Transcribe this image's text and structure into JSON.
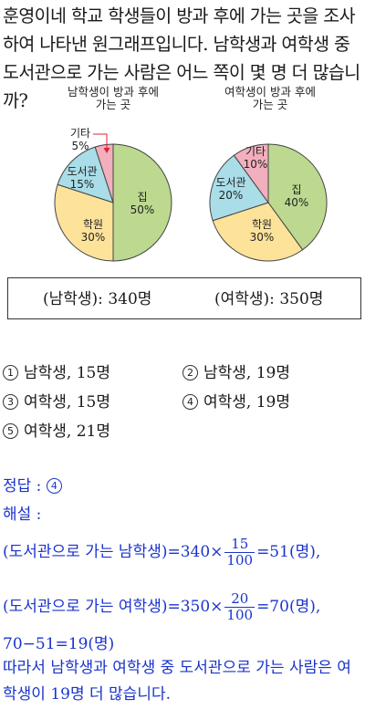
{
  "question": {
    "text": "훈영이네 학교 학생들이 방과 후에 가는 곳을 조사하여 나타낸 원그래프입니다. 남학생과 여학생 중 도서관으로 가는 사람은 어느 쪽이 몇 명 더 많습니까?"
  },
  "chart_data": [
    {
      "type": "pie",
      "title_line1": "남학생이 방과 후에",
      "title_line2": "가는 곳",
      "slices": [
        {
          "label": "집",
          "value": 50,
          "text": "50%",
          "color": "#bcd98f"
        },
        {
          "label": "학원",
          "value": 30,
          "text": "30%",
          "color": "#fde29a"
        },
        {
          "label": "도서관",
          "value": 15,
          "text": "15%",
          "color": "#a9dde8"
        },
        {
          "label": "기타",
          "value": 5,
          "text": "5%",
          "color": "#f2afbd"
        }
      ]
    },
    {
      "type": "pie",
      "title_line1": "여학생이 방과 후에",
      "title_line2": "가는 곳",
      "slices": [
        {
          "label": "집",
          "value": 40,
          "text": "40%",
          "color": "#bcd98f"
        },
        {
          "label": "학원",
          "value": 30,
          "text": "30%",
          "color": "#fde29a"
        },
        {
          "label": "도서관",
          "value": 20,
          "text": "20%",
          "color": "#a9dde8"
        },
        {
          "label": "기타",
          "value": 10,
          "text": "10%",
          "color": "#f2afbd"
        }
      ]
    }
  ],
  "info_box": {
    "male": "(남학생): 340명",
    "female": "(여학생): 350명"
  },
  "choices": [
    {
      "num": "1",
      "text": "남학생, 15명"
    },
    {
      "num": "2",
      "text": "남학생, 19명"
    },
    {
      "num": "3",
      "text": "여학생, 15명"
    },
    {
      "num": "4",
      "text": "여학생, 19명"
    },
    {
      "num": "5",
      "text": "여학생, 21명"
    }
  ],
  "solution": {
    "answer_label": "정답 : ",
    "answer_num": "4",
    "explain_label": "해설 :",
    "line1_prefix": "(도서관으로 가는 남학생)=340×",
    "line1_num": "15",
    "line1_den": "100",
    "line1_suffix": "=51(명),",
    "line2_prefix": "(도서관으로 가는 여학생)=350×",
    "line2_num": "20",
    "line2_den": "100",
    "line2_suffix": "=70(명),",
    "line3": "70−51=19(명)",
    "line4": "따라서 남학생과 여학생 중 도서관으로 가는 사람은 여",
    "line5": "학생이 19명 더 많습니다."
  }
}
